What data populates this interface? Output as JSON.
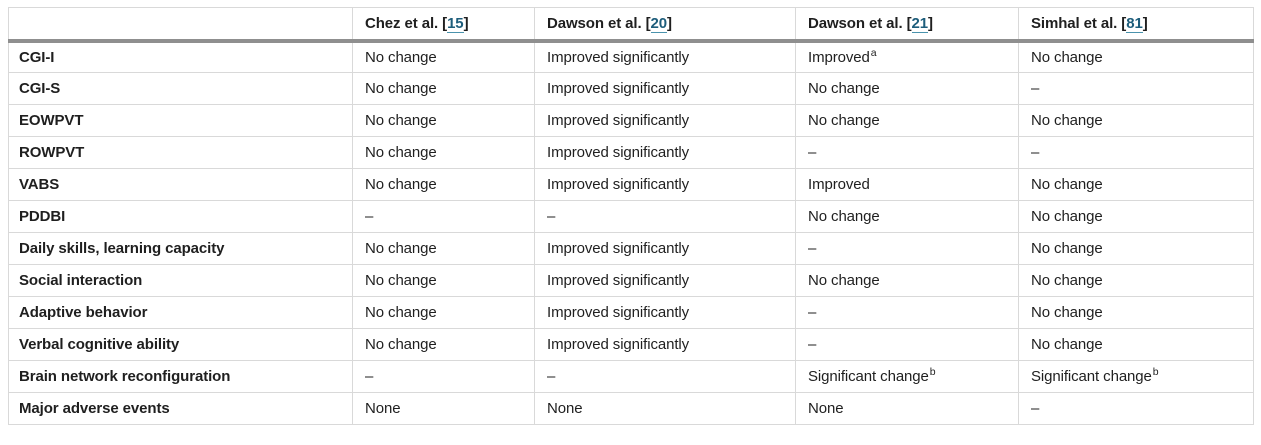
{
  "colors": {
    "text": "#1f1f1f",
    "citation_link": "#1d5d7b",
    "citation_underline": "#4a93ad",
    "row_border": "#d9d9d9",
    "header_divider": "#8f8f8f",
    "background": "#ffffff"
  },
  "table": {
    "columns": [
      {
        "pre": "",
        "num": "",
        "post": ""
      },
      {
        "pre": "Chez et al. [",
        "num": "15",
        "post": "]"
      },
      {
        "pre": "Dawson et al. [",
        "num": "20",
        "post": "]"
      },
      {
        "pre": "Dawson et al. [",
        "num": "21",
        "post": "]"
      },
      {
        "pre": "Simhal et al. [",
        "num": "81",
        "post": "]"
      }
    ],
    "rows": [
      {
        "label": "CGI-I",
        "cells": [
          {
            "t": "No change"
          },
          {
            "t": "Improved significantly"
          },
          {
            "t": "Improved",
            "sup": "a"
          },
          {
            "t": "No change"
          }
        ]
      },
      {
        "label": "CGI-S",
        "cells": [
          {
            "t": "No change"
          },
          {
            "t": "Improved significantly"
          },
          {
            "t": "No change"
          },
          {
            "t": "–"
          }
        ]
      },
      {
        "label": "EOWPVT",
        "cells": [
          {
            "t": "No change"
          },
          {
            "t": "Improved significantly"
          },
          {
            "t": "No change"
          },
          {
            "t": "No change"
          }
        ]
      },
      {
        "label": "ROWPVT",
        "cells": [
          {
            "t": "No change"
          },
          {
            "t": "Improved significantly"
          },
          {
            "t": "–"
          },
          {
            "t": "–"
          }
        ]
      },
      {
        "label": "VABS",
        "cells": [
          {
            "t": "No change"
          },
          {
            "t": "Improved significantly"
          },
          {
            "t": "Improved"
          },
          {
            "t": "No change"
          }
        ]
      },
      {
        "label": "PDDBI",
        "cells": [
          {
            "t": "–"
          },
          {
            "t": "–"
          },
          {
            "t": "No change"
          },
          {
            "t": "No change"
          }
        ]
      },
      {
        "label": "Daily skills, learning capacity",
        "cells": [
          {
            "t": "No change"
          },
          {
            "t": "Improved significantly"
          },
          {
            "t": "–"
          },
          {
            "t": "No change"
          }
        ]
      },
      {
        "label": "Social interaction",
        "cells": [
          {
            "t": "No change"
          },
          {
            "t": "Improved significantly"
          },
          {
            "t": "No change"
          },
          {
            "t": "No change"
          }
        ]
      },
      {
        "label": "Adaptive behavior",
        "cells": [
          {
            "t": "No change"
          },
          {
            "t": "Improved significantly"
          },
          {
            "t": "–"
          },
          {
            "t": "No change"
          }
        ]
      },
      {
        "label": "Verbal cognitive ability",
        "cells": [
          {
            "t": "No change"
          },
          {
            "t": "Improved significantly"
          },
          {
            "t": "–"
          },
          {
            "t": "No change"
          }
        ]
      },
      {
        "label": "Brain network reconfiguration",
        "cells": [
          {
            "t": "–"
          },
          {
            "t": "–"
          },
          {
            "t": "Significant change",
            "sup": "b"
          },
          {
            "t": "Significant change",
            "sup": "b"
          }
        ]
      },
      {
        "label": "Major adverse events",
        "cells": [
          {
            "t": "None"
          },
          {
            "t": "None"
          },
          {
            "t": "None"
          },
          {
            "t": "–"
          }
        ]
      }
    ]
  }
}
